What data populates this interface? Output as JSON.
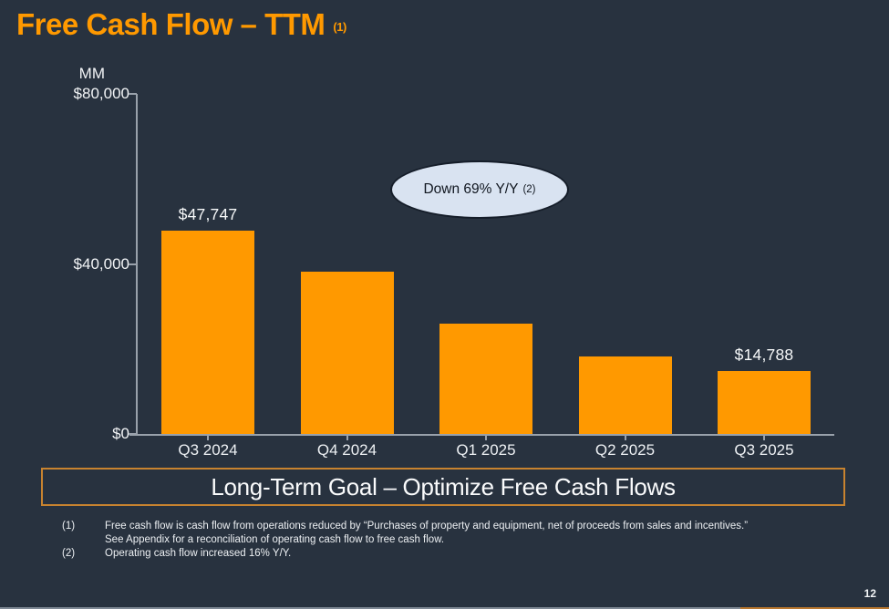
{
  "slide": {
    "title": "Free Cash Flow – TTM",
    "title_footnote_ref": "(1)",
    "page_number": "12"
  },
  "chart_data": {
    "type": "bar",
    "title": "Free Cash Flow – TTM",
    "unit_label": "MM",
    "categories": [
      "Q3 2024",
      "Q4 2024",
      "Q1 2025",
      "Q2 2025",
      "Q3 2025"
    ],
    "values": [
      47747,
      38200,
      25900,
      18200,
      14788
    ],
    "data_labels": [
      "$47,747",
      null,
      null,
      null,
      "$14,788"
    ],
    "y_ticks": [
      {
        "value": 80000,
        "label": "$80,000"
      },
      {
        "value": 40000,
        "label": "$40,000"
      },
      {
        "value": 0,
        "label": "$0"
      }
    ],
    "ylim": [
      0,
      80000
    ],
    "xlabel": "",
    "ylabel": "MM",
    "grid": false,
    "legend": false,
    "bar_color": "#FF9900"
  },
  "callout": {
    "text": "Down 69% Y/Y",
    "footnote_ref": "(2)"
  },
  "goal_banner": {
    "text": "Long-Term Goal – Optimize Free Cash Flows"
  },
  "footnotes": [
    {
      "marker": "(1)",
      "lines": [
        "Free cash flow is cash flow from operations reduced by “Purchases of property and equipment, net of proceeds from sales and incentives.”",
        "See Appendix for a reconciliation of operating cash flow to free cash flow."
      ]
    },
    {
      "marker": "(2)",
      "lines": [
        "Operating cash flow increased 16% Y/Y."
      ]
    }
  ],
  "colors": {
    "background": "#28323F",
    "accent_orange": "#FF9900",
    "axis": "#99A1AB",
    "text": "#FFFFFF",
    "callout_fill": "#D9E3F1",
    "callout_border": "#151D29",
    "banner_border": "#C8832F",
    "footer_line_gray": "#7E8894",
    "footer_line_orange": "#B8772F"
  }
}
